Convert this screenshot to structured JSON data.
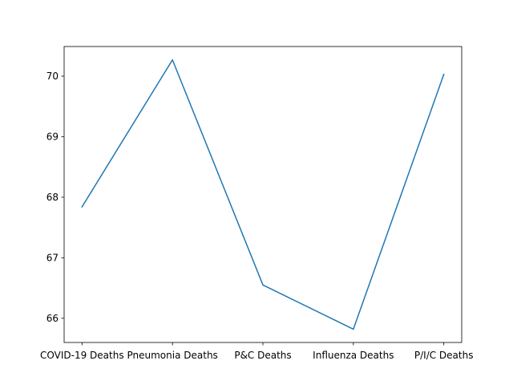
{
  "chart_data": {
    "type": "line",
    "title": "",
    "xlabel": "",
    "ylabel": "",
    "categories": [
      "COVID-19 Deaths",
      "Pneumonia Deaths",
      "P&C Deaths",
      "Influenza Deaths",
      "P/I/C Deaths"
    ],
    "series": [
      {
        "values": [
          67.84,
          70.27,
          66.55,
          65.82,
          70.03
        ],
        "color": "#1f77b4"
      }
    ],
    "ylim": [
      65.6,
      70.49
    ],
    "yticks": [
      66,
      67,
      68,
      69,
      70
    ],
    "grid": false,
    "legend": "none"
  }
}
